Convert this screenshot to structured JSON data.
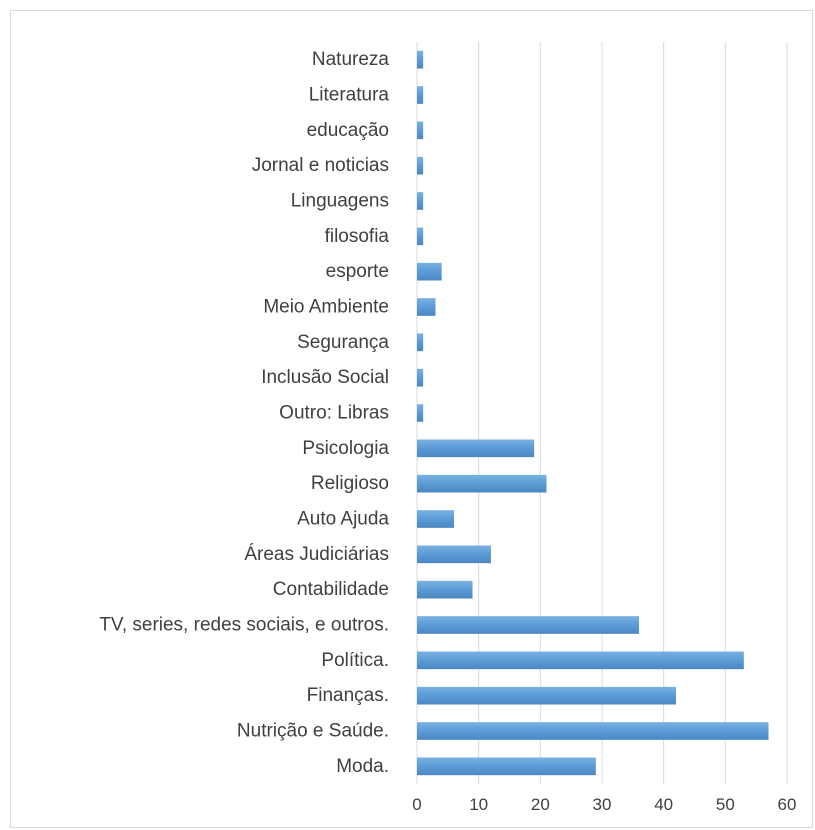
{
  "chart_data": {
    "type": "bar",
    "orientation": "horizontal",
    "categories": [
      "Moda.",
      "Nutrição e Saúde.",
      "Finanças.",
      "Política.",
      "TV, series, redes sociais, e outros.",
      "Contabilidade",
      "Áreas Judiciárias",
      "Auto Ajuda",
      "Religioso",
      "Psicologia",
      "Outro: Libras",
      "Inclusão Social",
      "Segurança",
      "Meio Ambiente",
      "esporte",
      "filosofia",
      "Linguagens",
      "Jornal e noticias",
      "educação",
      "Literatura",
      "Natureza"
    ],
    "values": [
      29,
      57,
      42,
      53,
      36,
      9,
      12,
      6,
      21,
      19,
      1,
      1,
      1,
      3,
      4,
      1,
      1,
      1,
      1,
      1,
      1
    ],
    "xlim": [
      0,
      60
    ],
    "xticks": [
      0,
      10,
      20,
      30,
      40,
      50,
      60
    ],
    "grid": true,
    "bar_color": "#5b9bd5",
    "grid_color": "#d9d9d9"
  }
}
